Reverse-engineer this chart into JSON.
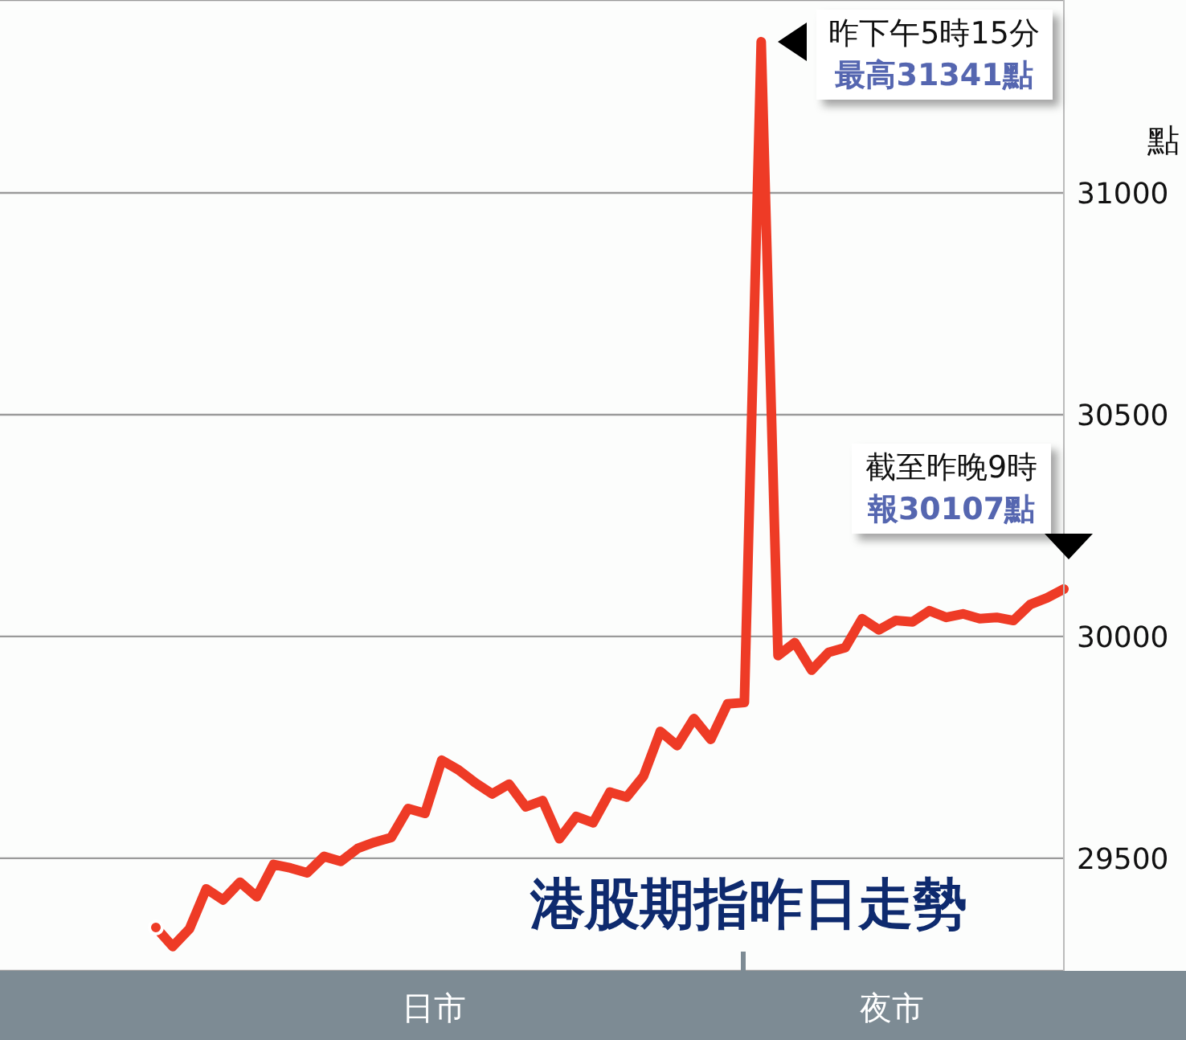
{
  "chart_data": {
    "type": "line",
    "title": "港股期指昨日走勢",
    "ylabel": "點",
    "categories": [
      null,
      null,
      null,
      null,
      null,
      null,
      null,
      null,
      null,
      null,
      null,
      null,
      null,
      null,
      null,
      null,
      null,
      null,
      null,
      null,
      null,
      null,
      null,
      null,
      null,
      null,
      null,
      null,
      null,
      null,
      null,
      null,
      null,
      null,
      null,
      null,
      null,
      null,
      null,
      null,
      null,
      null,
      null,
      null,
      null,
      null,
      null,
      null,
      null,
      null,
      null,
      null,
      null,
      null,
      null
    ],
    "series": [
      {
        "color": "#ee3b26",
        "values": [
          29344,
          29301,
          29341,
          29431,
          29406,
          29446,
          29413,
          29486,
          29478,
          29467,
          29504,
          29493,
          29522,
          29536,
          29547,
          29612,
          29601,
          29721,
          29699,
          29670,
          29645,
          29667,
          29616,
          29630,
          29544,
          29594,
          29580,
          29649,
          29638,
          29685,
          29786,
          29754,
          29815,
          29768,
          29848,
          29851,
          31341,
          29957,
          29986,
          29924,
          29964,
          29975,
          30040,
          30015,
          30036,
          30033,
          30058,
          30043,
          30051,
          30040,
          30043,
          30036,
          30072,
          30087,
          30107
        ]
      }
    ],
    "ylim": [
      29246,
      31435
    ],
    "yticks": [
      29500,
      30000,
      30500,
      31000
    ],
    "grid": "y",
    "legend": false,
    "marker": "none",
    "line_style": "solid",
    "annotations": [
      "昨下午5時15分",
      "最高31341點",
      "截至昨晚9時",
      "報30107點",
      "日市",
      "夜市"
    ]
  }
}
